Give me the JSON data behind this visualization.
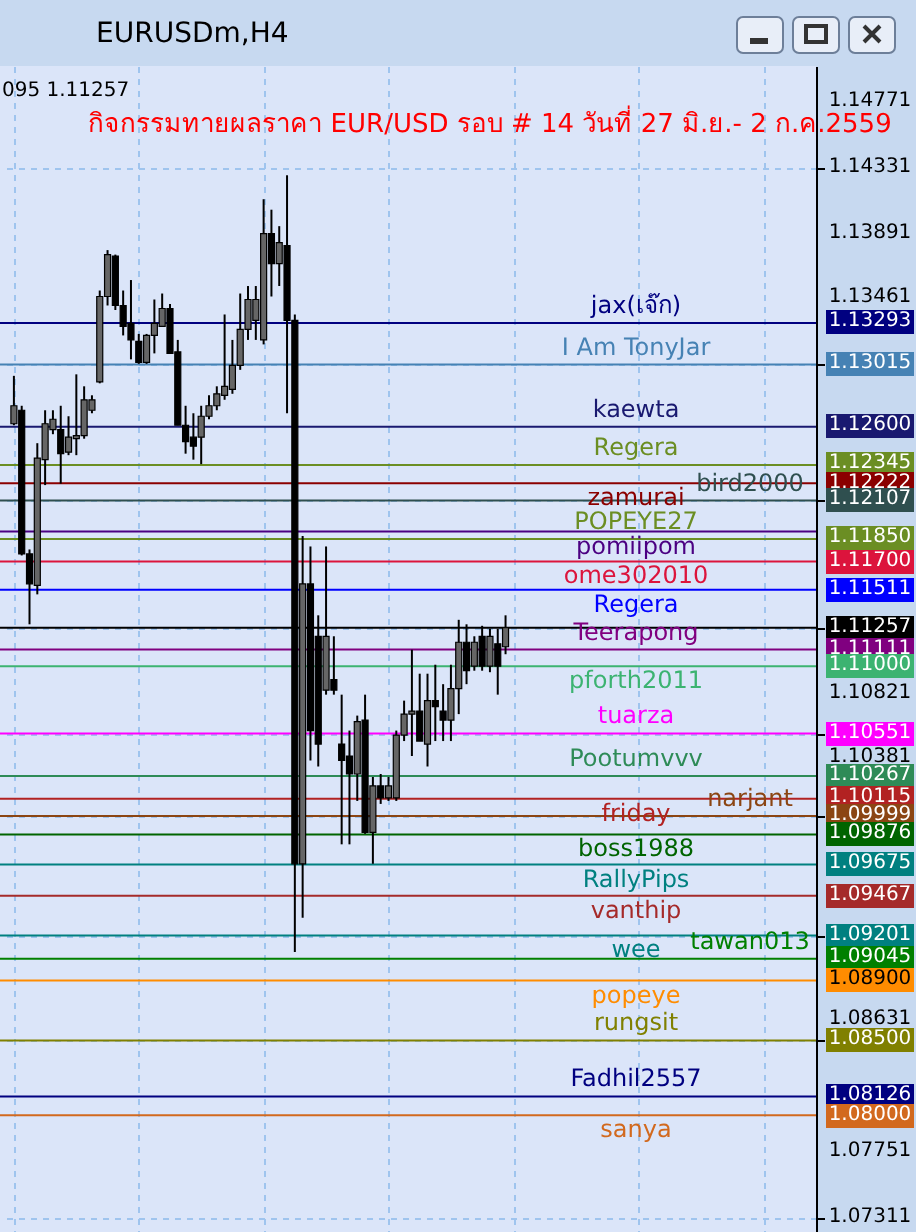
{
  "chart_data": {
    "type": "candlestick",
    "title": "EURUSDm,H4",
    "subtitle": "กิจกรรมทายผลราคา EUR/USD รอบ # 14 วันที่ 27 มิ.ย.- 2 ก.ค.2559",
    "annotations": [
      "095 1.11257"
    ],
    "categories": [
      null,
      null,
      null,
      null,
      null,
      null,
      null,
      null,
      null,
      null,
      null,
      null,
      null,
      null,
      null,
      null,
      null,
      null,
      null,
      null,
      null,
      null,
      null,
      null,
      null,
      null,
      null,
      null,
      null,
      null,
      null,
      null,
      null,
      null,
      null,
      null,
      null,
      null,
      null,
      null,
      null,
      null,
      null,
      null,
      null,
      null,
      null,
      null,
      null,
      null,
      null,
      null,
      null,
      null,
      null,
      null,
      null,
      null,
      null,
      null,
      null,
      null,
      null,
      null,
      null,
      null,
      null,
      null,
      null,
      null,
      null,
      null,
      null,
      null,
      null,
      null,
      null,
      null,
      null,
      null,
      null,
      null,
      null,
      null,
      null,
      null,
      null,
      null,
      null,
      null,
      null,
      null,
      null,
      null,
      null,
      null,
      null,
      null,
      null,
      null,
      null,
      null
    ],
    "series": [
      {
        "color": "#000000",
        "ohlc": [
          [
            1.1262,
            1.1294,
            1.1261,
            1.1274
          ],
          [
            1.1271,
            1.1274,
            1.1174,
            1.1175
          ],
          [
            1.1175,
            1.1178,
            1.1128,
            1.1155
          ],
          [
            1.1154,
            1.1249,
            1.1148,
            1.1239
          ],
          [
            1.1238,
            1.1271,
            1.1221,
            1.1262
          ],
          [
            1.1258,
            1.1271,
            1.1255,
            1.1265
          ],
          [
            1.1258,
            1.1274,
            1.1222,
            1.1242
          ],
          [
            1.1243,
            1.1267,
            1.1241,
            1.1253
          ],
          [
            1.1252,
            1.1295,
            1.1241,
            1.1254
          ],
          [
            1.1254,
            1.1287,
            1.1252,
            1.1278
          ],
          [
            1.1271,
            1.1281,
            1.1269,
            1.1278
          ],
          [
            1.129,
            1.1351,
            1.1289,
            1.1347
          ],
          [
            1.1347,
            1.1378,
            1.1341,
            1.1375
          ],
          [
            1.1374,
            1.1375,
            1.1338,
            1.1341
          ],
          [
            1.1341,
            1.1351,
            1.1321,
            1.1327
          ],
          [
            1.1329,
            1.1358,
            1.1305,
            1.1318
          ],
          [
            1.1317,
            1.1322,
            1.1302,
            1.1303
          ],
          [
            1.1303,
            1.1322,
            1.1302,
            1.1321
          ],
          [
            1.1321,
            1.1345,
            1.1309,
            1.1329
          ],
          [
            1.1327,
            1.1349,
            1.1327,
            1.1339
          ],
          [
            1.1339,
            1.1342,
            1.1309,
            1.1309
          ],
          [
            1.131,
            1.1318,
            1.1261,
            1.1261
          ],
          [
            1.1261,
            1.1274,
            1.1242,
            1.125
          ],
          [
            1.1253,
            1.1269,
            1.1238,
            1.1247
          ],
          [
            1.1253,
            1.1274,
            1.1235,
            1.1267
          ],
          [
            1.1267,
            1.1281,
            1.1265,
            1.1274
          ],
          [
            1.1274,
            1.1287,
            1.1271,
            1.1282
          ],
          [
            1.1281,
            1.1335,
            1.1278,
            1.1287
          ],
          [
            1.1285,
            1.1318,
            1.1282,
            1.1301
          ],
          [
            1.1301,
            1.1349,
            1.1298,
            1.1325
          ],
          [
            1.1325,
            1.1354,
            1.1318,
            1.1345
          ],
          [
            1.1331,
            1.1354,
            1.1318,
            1.1345
          ],
          [
            1.1318,
            1.1412,
            1.1315,
            1.1389
          ],
          [
            1.1389,
            1.1405,
            1.1347,
            1.1369
          ],
          [
            1.1369,
            1.1394,
            1.1354,
            1.1383
          ],
          [
            1.1381,
            1.1428,
            1.1269,
            1.1331
          ],
          [
            1.1331,
            1.1335,
            1.0909,
            1.0968
          ],
          [
            1.0968,
            1.1187,
            1.0932,
            1.1155
          ],
          [
            1.1155,
            1.118,
            1.1037,
            1.1057
          ],
          [
            1.112,
            1.1134,
            1.1033,
            1.1048
          ],
          [
            1.1084,
            1.118,
            1.1081,
            1.112
          ],
          [
            1.1091,
            1.112,
            1.1081,
            1.1084
          ],
          [
            1.1048,
            1.1081,
            1.0981,
            1.1037
          ],
          [
            1.104,
            1.1057,
            1.0981,
            1.1028
          ],
          [
            1.1028,
            1.1067,
            1.101,
            1.1063
          ],
          [
            1.1064,
            1.1081,
            1.0988,
            1.0989
          ],
          [
            1.0989,
            1.1026,
            1.0968,
            1.102
          ],
          [
            1.102,
            1.1028,
            1.1008,
            1.1012
          ],
          [
            1.1012,
            1.1026,
            1.101,
            1.102
          ],
          [
            1.1012,
            1.1057,
            1.101,
            1.1054
          ],
          [
            1.1054,
            1.1077,
            1.105,
            1.1068
          ],
          [
            1.1068,
            1.1111,
            1.104,
            1.107
          ],
          [
            1.107,
            1.1095,
            1.105,
            1.105
          ],
          [
            1.1048,
            1.1095,
            1.1033,
            1.1077
          ],
          [
            1.1077,
            1.1101,
            1.105,
            1.1073
          ],
          [
            1.107,
            1.1088,
            1.105,
            1.1064
          ],
          [
            1.1064,
            1.1101,
            1.105,
            1.1085
          ],
          [
            1.1085,
            1.1131,
            1.1068,
            1.1116
          ],
          [
            1.1116,
            1.1128,
            1.1088,
            1.1097
          ],
          [
            1.11,
            1.112,
            1.1097,
            1.1116
          ],
          [
            1.112,
            1.1127,
            1.1097,
            1.11
          ],
          [
            1.11,
            1.1125,
            1.1096,
            1.112
          ],
          [
            1.1115,
            1.1125,
            1.1081,
            1.11
          ],
          [
            1.1113,
            1.1134,
            1.1108,
            1.11257
          ],
          null,
          null,
          null,
          null,
          null,
          null,
          null,
          null,
          null,
          null,
          null,
          null,
          null,
          null,
          null,
          null,
          null,
          null,
          null,
          null,
          null,
          null,
          null,
          null,
          null,
          null,
          null,
          null,
          null,
          null,
          null,
          null,
          null,
          null,
          null,
          null,
          null,
          null
        ]
      }
    ],
    "ylim": [
      1.0722,
      1.1501
    ],
    "yticks": [
      1.14771,
      1.14331,
      1.13891,
      1.13461,
      1.13293,
      1.13015,
      {
        "value": 1.126,
        "label": "1.12600"
      },
      1.12345,
      1.12222,
      1.12107,
      {
        "value": 1.1185,
        "label": "1.11850"
      },
      {
        "value": 1.117,
        "label": "1.11700"
      },
      1.11511,
      1.11257,
      1.11111,
      {
        "value": 1.11,
        "label": "1.11000"
      },
      1.10821,
      1.10551,
      1.10381,
      1.10267,
      1.10115,
      1.09999,
      1.09876,
      1.09675,
      1.09467,
      1.09201,
      1.09045,
      {
        "value": 1.089,
        "label": "1.08900"
      },
      1.08631,
      {
        "value": 1.085,
        "label": "1.08500"
      },
      1.08126,
      {
        "value": 1.08,
        "label": "1.08000"
      },
      1.07751,
      1.07311
    ],
    "grid": true,
    "tick_labels": "y",
    "ref_lines": [
      {
        "axis": "y",
        "value": 1.13293,
        "label": "jax(เจ๊ก)",
        "color": "#000080"
      },
      {
        "axis": "y",
        "value": 1.13015,
        "label": "I Am TonyJar",
        "color": "#4682b4"
      },
      {
        "axis": "y",
        "value": 1.126,
        "label": "kaewta",
        "color": "#191970"
      },
      {
        "axis": "y",
        "value": 1.12345,
        "label": "Regera",
        "color": "#6b8e23"
      },
      {
        "axis": "y",
        "value": 1.12222,
        "label": "zamurai",
        "color": "#8b0000"
      },
      {
        "axis": "y",
        "value": 1.12107,
        "label": "bird2000",
        "color": "#2f4f4f"
      },
      {
        "axis": "y",
        "value": 1.119,
        "label": "pomiipom",
        "color": "#4b0082"
      },
      {
        "axis": "y",
        "value": 1.1185,
        "label": "POPEYE27",
        "color": "#6b8e23"
      },
      {
        "axis": "y",
        "value": 1.117,
        "label": "ome302010",
        "color": "#dc143c"
      },
      {
        "axis": "y",
        "value": 1.11511,
        "label": "Regera",
        "color": "#0000ff"
      },
      {
        "axis": "y",
        "value": 1.11257,
        "label": null,
        "color": "#000000"
      },
      {
        "axis": "y",
        "value": 1.11111,
        "label": "Teerapong",
        "color": "#800080"
      },
      {
        "axis": "y",
        "value": 1.11,
        "label": "pforth2011",
        "color": "#3cb371"
      },
      {
        "axis": "y",
        "value": 1.10551,
        "label": "tuarza",
        "color": "#ff00ff"
      },
      {
        "axis": "y",
        "value": 1.10267,
        "label": "Pootumvvv",
        "color": "#2e8b57"
      },
      {
        "axis": "y",
        "value": 1.10115,
        "label": "friday",
        "color": "#b22222"
      },
      {
        "axis": "y",
        "value": 1.09999,
        "label": "narjant",
        "color": "#8b4513"
      },
      {
        "axis": "y",
        "value": 1.09876,
        "label": "boss1988",
        "color": "#006400"
      },
      {
        "axis": "y",
        "value": 1.09675,
        "label": "RallyPips",
        "color": "#008080"
      },
      {
        "axis": "y",
        "value": 1.09467,
        "label": "vanthip",
        "color": "#a52a2a"
      },
      {
        "axis": "y",
        "value": 1.09201,
        "label": "wee",
        "color": "#008080"
      },
      {
        "axis": "y",
        "value": 1.09045,
        "label": "tawan013",
        "color": "#008000"
      },
      {
        "axis": "y",
        "value": 1.089,
        "label": "popeye",
        "color": "#ff8c00"
      },
      {
        "axis": "y",
        "value": 1.085,
        "label": "rungsit",
        "color": "#808000"
      },
      {
        "axis": "y",
        "value": 1.08126,
        "label": "Fadhil2557",
        "color": "#000080"
      },
      {
        "axis": "y",
        "value": 1.08,
        "label": "sanya",
        "color": "#d2691e"
      }
    ]
  }
}
